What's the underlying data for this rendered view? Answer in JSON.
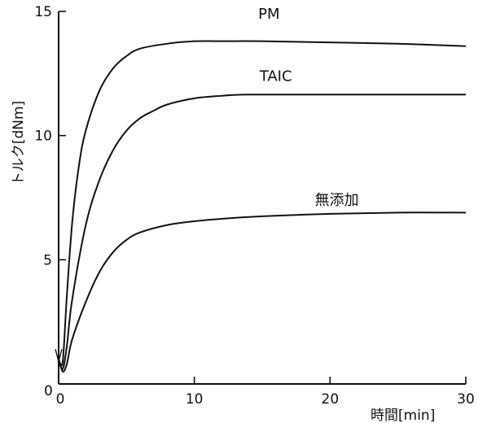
{
  "chart_data": {
    "type": "line",
    "xlabel": "時間[min]",
    "ylabel": "トルク[dNm]",
    "xlim": [
      0,
      30
    ],
    "ylim": [
      0,
      15
    ],
    "origin_label": "0",
    "x_ticks": [
      0,
      10,
      20,
      30
    ],
    "y_ticks": [
      5,
      10,
      15
    ],
    "grid": false,
    "series": [
      {
        "name": "PM",
        "x": [
          0,
          0.3,
          0.6,
          1,
          1.5,
          2,
          3,
          4,
          5,
          6,
          8,
          10,
          12,
          15,
          20,
          25,
          30
        ],
        "y": [
          1.0,
          0.9,
          3.5,
          6.5,
          8.8,
          10.2,
          11.8,
          12.7,
          13.2,
          13.5,
          13.7,
          13.8,
          13.8,
          13.8,
          13.75,
          13.7,
          13.6
        ]
      },
      {
        "name": "TAIC",
        "x": [
          0,
          0.3,
          0.6,
          1,
          2,
          3,
          4,
          5,
          6,
          7,
          8,
          10,
          12,
          14,
          20,
          25,
          30
        ],
        "y": [
          1.0,
          0.6,
          1.5,
          3.4,
          6.4,
          8.2,
          9.4,
          10.2,
          10.7,
          11.0,
          11.25,
          11.5,
          11.6,
          11.65,
          11.65,
          11.65,
          11.65
        ]
      },
      {
        "name": "無添加",
        "x": [
          0,
          0.3,
          0.6,
          1,
          2,
          3,
          4,
          5,
          6,
          8,
          10,
          12,
          15,
          20,
          25,
          30
        ],
        "y": [
          1.0,
          0.5,
          0.8,
          1.8,
          3.3,
          4.5,
          5.3,
          5.8,
          6.1,
          6.4,
          6.55,
          6.65,
          6.75,
          6.85,
          6.9,
          6.9
        ]
      }
    ]
  }
}
